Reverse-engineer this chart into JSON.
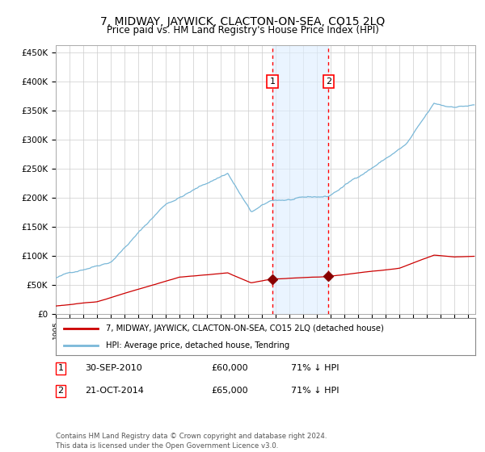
{
  "title": "7, MIDWAY, JAYWICK, CLACTON-ON-SEA, CO15 2LQ",
  "subtitle": "Price paid vs. HM Land Registry's House Price Index (HPI)",
  "hpi_color": "#7ab8d8",
  "price_color": "#cc0000",
  "marker_color": "#880000",
  "marker1_label": "30-SEP-2010",
  "marker2_label": "21-OCT-2014",
  "marker1_price": 60000,
  "marker2_price": 65000,
  "marker1_pct": "71%",
  "marker2_pct": "71%",
  "vline1_year": 2010.75,
  "vline2_year": 2014.83,
  "ylim_max": 462500,
  "ylim_min": 0,
  "legend_label_red": "7, MIDWAY, JAYWICK, CLACTON-ON-SEA, CO15 2LQ (detached house)",
  "legend_label_blue": "HPI: Average price, detached house, Tendring",
  "footer": "Contains HM Land Registry data © Crown copyright and database right 2024.\nThis data is licensed under the Open Government Licence v3.0.",
  "plot_bg": "#ffffff",
  "shade_color": "#ddeeff",
  "shade_alpha": 0.6
}
